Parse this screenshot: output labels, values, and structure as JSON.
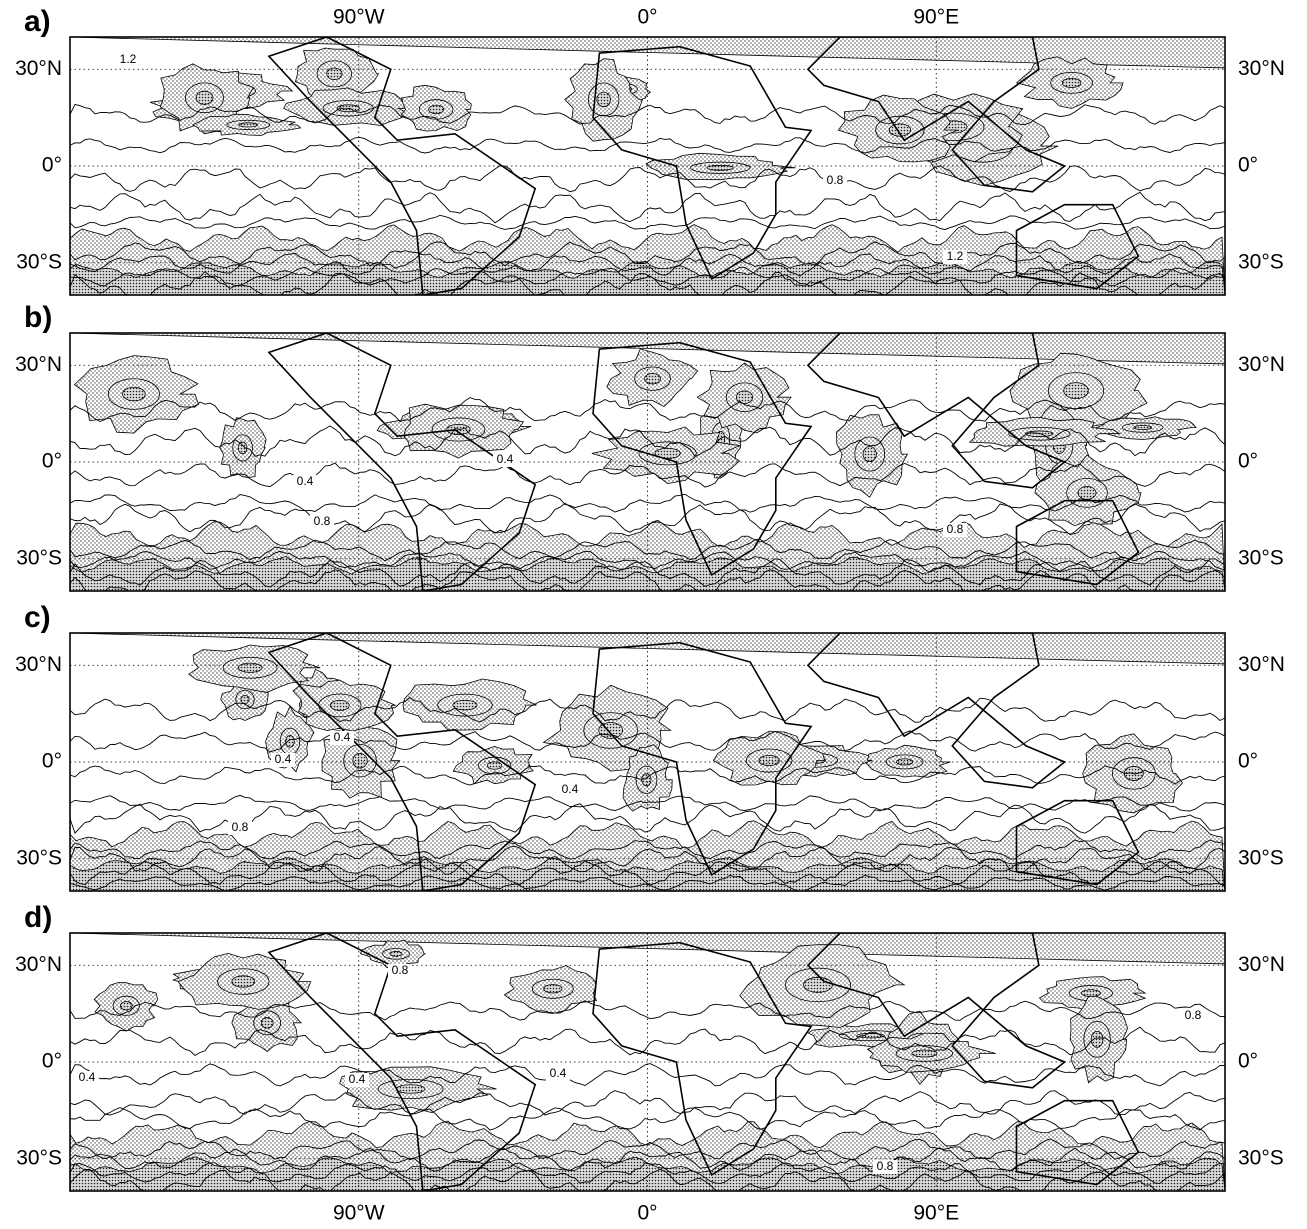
{
  "lon_range": [
    -180,
    180
  ],
  "lat_range": [
    -40,
    40
  ],
  "lon_ticks": [
    {
      "value": -90,
      "label": "90°W"
    },
    {
      "value": 0,
      "label": "0°"
    },
    {
      "value": 90,
      "label": "90°E"
    }
  ],
  "lat_ticks": [
    {
      "value": 30,
      "label": "30°N"
    },
    {
      "value": 0,
      "label": "0°"
    },
    {
      "value": -30,
      "label": "30°S"
    }
  ],
  "panels": [
    {
      "label": "a)",
      "contour_labels": [
        "1.2",
        "0.8",
        "1.2"
      ]
    },
    {
      "label": "b)",
      "contour_labels": [
        "0.4",
        "0.4",
        "0.8",
        "0.8"
      ]
    },
    {
      "label": "c)",
      "contour_labels": [
        "0.4",
        "0.4",
        "0.4",
        "0.8"
      ]
    },
    {
      "label": "d)",
      "contour_labels": [
        "0.8",
        "0.8",
        "0.4",
        "0.4",
        "0.4",
        "0.8"
      ]
    }
  ]
}
